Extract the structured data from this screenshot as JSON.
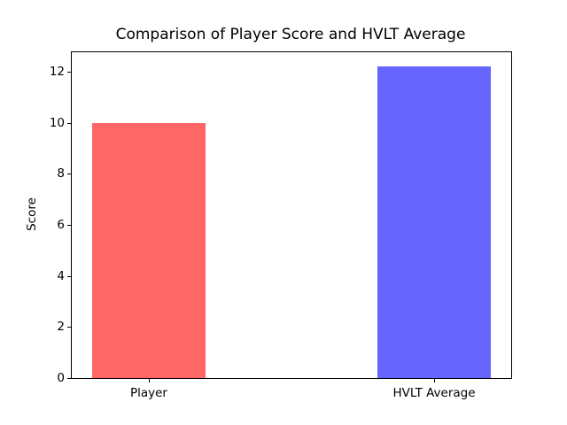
{
  "chart_data": {
    "type": "bar",
    "title": "Comparison of Player Score and HVLT Average",
    "xlabel": "",
    "ylabel": "Score",
    "categories": [
      "Player",
      "HVLT Average"
    ],
    "values": [
      10.0,
      12.2
    ],
    "bar_colors": [
      "#ff6666",
      "#6666ff"
    ],
    "x": [
      0,
      1
    ],
    "bar_width": 0.4,
    "xlim": [
      -0.27,
      1.27
    ],
    "ylim": [
      0,
      12.76
    ],
    "yticks": [
      0,
      2,
      4,
      6,
      8,
      10,
      12
    ],
    "grid": false,
    "legend": "none",
    "spine_color": "#000000",
    "background_color": "#ffffff"
  }
}
